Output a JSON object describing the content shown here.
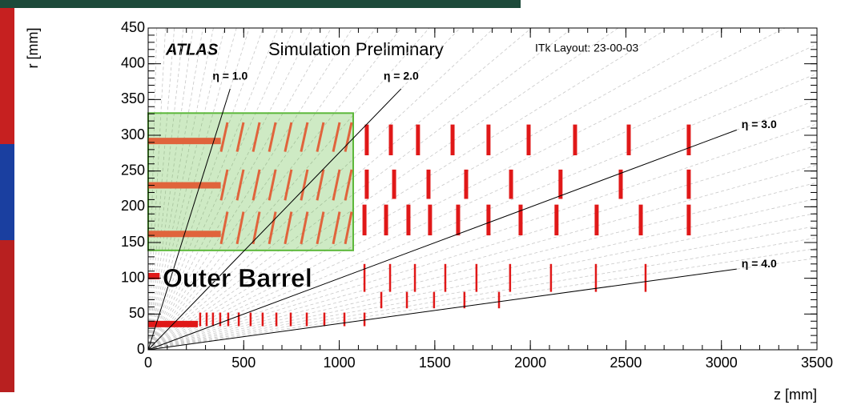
{
  "chart_data": {
    "type": "scatter",
    "title": "ATLAS",
    "subtitle": "Simulation Preliminary",
    "layout_label": "ITk Layout: 23-00-03",
    "x_label": "z [mm]",
    "y_label": "r [mm]",
    "xlim": [
      0,
      3500
    ],
    "ylim": [
      0,
      450
    ],
    "xticks": [
      0,
      500,
      1000,
      1500,
      2000,
      2500,
      3000,
      3500
    ],
    "yticks": [
      0,
      50,
      100,
      150,
      200,
      250,
      300,
      350,
      400,
      450
    ],
    "eta_lines": [
      {
        "label": "η = 1.0",
        "eta": 1.0
      },
      {
        "label": "η = 2.0",
        "eta": 2.0
      },
      {
        "label": "η = 3.0",
        "eta": 3.0
      },
      {
        "label": "η = 4.0",
        "eta": 4.0
      }
    ],
    "region": {
      "label": "Outer Barrel",
      "z_range": [
        0,
        1073
      ],
      "r_range": [
        139,
        331
      ],
      "color": "#5cb83a"
    },
    "staves": [
      {
        "color": "#e0643c",
        "z_range": [
          0,
          380
        ],
        "r": 292
      },
      {
        "color": "#e0643c",
        "z_range": [
          0,
          380
        ],
        "r": 230
      },
      {
        "color": "#e0643c",
        "z_range": [
          0,
          380
        ],
        "r": 162
      },
      {
        "color": "#e01818",
        "z_range": [
          0,
          60
        ],
        "r": 103
      },
      {
        "color": "#e01818",
        "z_range": [
          0,
          260
        ],
        "r": 36
      }
    ],
    "series": [
      {
        "color": "#e0643c",
        "style": "tilted",
        "x": [
          398,
          482,
          566,
          650,
          733,
          817,
          901,
          985,
          1048
        ],
        "r_range": [
          277,
          318
        ]
      },
      {
        "color": "#e0643c",
        "style": "tilted",
        "x": [
          398,
          482,
          566,
          650,
          733,
          817,
          901,
          985,
          1048
        ],
        "r_range": [
          209,
          252
        ]
      },
      {
        "color": "#e0643c",
        "style": "tilted",
        "x": [
          398,
          482,
          566,
          650,
          733,
          817,
          901,
          985,
          1048
        ],
        "r_range": [
          148,
          193
        ]
      },
      {
        "color": "#e01818",
        "style": "vertical",
        "x": [
          1144,
          1270,
          1412,
          1593,
          1781,
          1991,
          2234,
          2515,
          2829
        ],
        "r_range": [
          272,
          315
        ]
      },
      {
        "color": "#e01818",
        "style": "vertical",
        "x": [
          1144,
          1287,
          1467,
          1664,
          1899,
          2158,
          2473,
          2829
        ],
        "r_range": [
          211,
          252
        ]
      },
      {
        "color": "#e01818",
        "style": "vertical",
        "x": [
          1132,
          1245,
          1362,
          1475,
          1622,
          1781,
          1949,
          2137,
          2347,
          2578,
          2829
        ],
        "r_range": [
          160,
          203
        ]
      },
      {
        "color": "#e01818",
        "style": "thin",
        "x": [
          1132,
          1266,
          1396,
          1555,
          1718,
          1894,
          2108,
          2343,
          2603
        ],
        "r_range": [
          81,
          120
        ]
      },
      {
        "color": "#e01818",
        "style": "thin",
        "x": [
          1220,
          1354,
          1496,
          1655,
          1836
        ],
        "r_range": [
          58,
          81
        ]
      },
      {
        "color": "#e01818",
        "style": "thin",
        "x": [
          272,
          306,
          339,
          377,
          419,
          474,
          536,
          599,
          671,
          746,
          830,
          922,
          1027,
          1132
        ],
        "r_range": [
          33,
          52
        ]
      }
    ]
  }
}
